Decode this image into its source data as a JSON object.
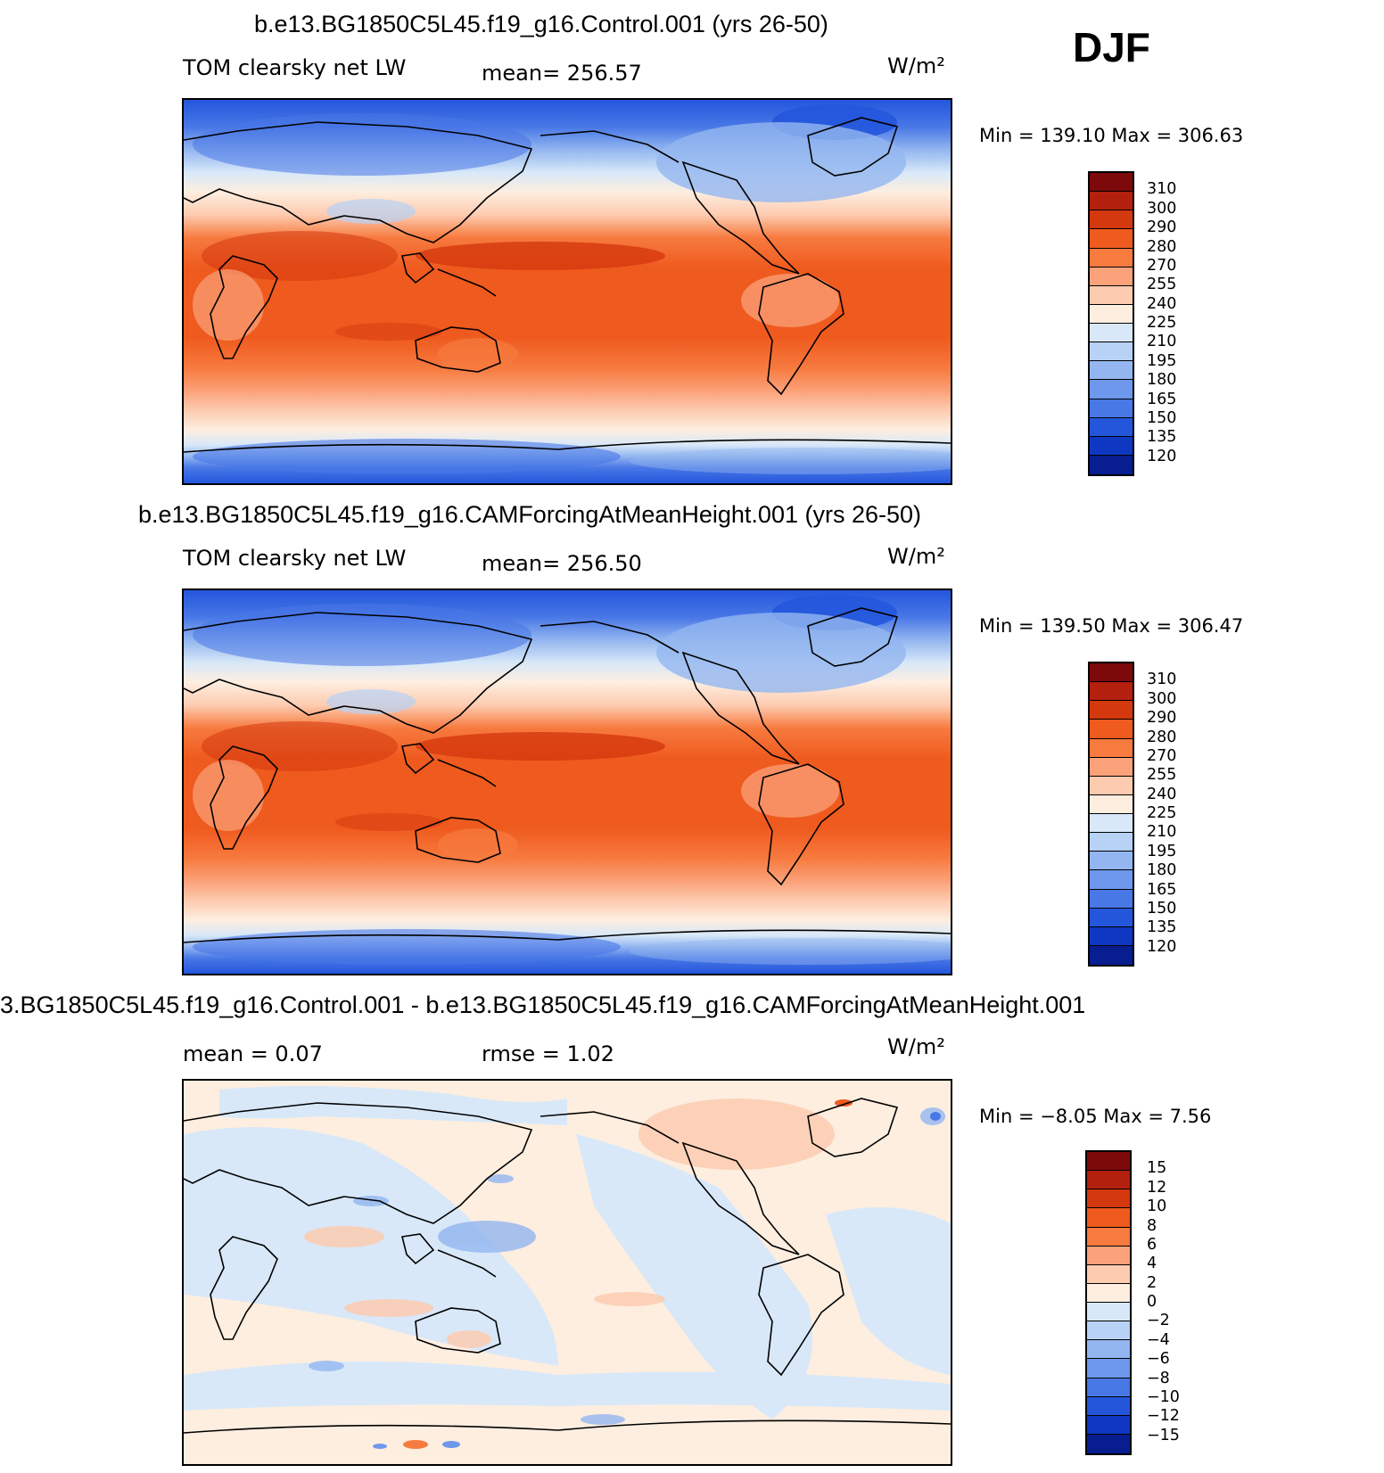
{
  "season": "DJF",
  "panels": [
    {
      "title": "b.e13.BG1850C5L45.f19_g16.Control.001 (yrs 26-50)",
      "left_label": "TOM clearsky net LW",
      "center_label": "mean= 256.57",
      "units": "W/m²",
      "minmax": "Min  =  139.10  Max  =  306.63"
    },
    {
      "title": "b.e13.BG1850C5L45.f19_g16.CAMForcingAtMeanHeight.001 (yrs 26-50)",
      "left_label": "TOM clearsky net LW",
      "center_label": "mean= 256.50",
      "units": "W/m²",
      "minmax": "Min  =  139.50  Max  =  306.47"
    },
    {
      "title": "3.BG1850C5L45.f19_g16.Control.001 - b.e13.BG1850C5L45.f19_g16.CAMForcingAtMeanHeight.001",
      "left_label": "mean  =     0.07",
      "center_label": "rmse  =     1.02",
      "units": "W/m²",
      "minmax": "Min  =    −8.05  Max  =      7.56"
    }
  ],
  "colorbars": {
    "field": {
      "colors": [
        "#7d0a0a",
        "#b3200d",
        "#d4380e",
        "#ef5a1e",
        "#f77a3f",
        "#fba27a",
        "#fdcbb0",
        "#fdeee0",
        "#d8e8f8",
        "#b7d2f5",
        "#93b6f0",
        "#6e98ec",
        "#4877e6",
        "#2456dc",
        "#0e38c2",
        "#081d8f"
      ],
      "ticks": [
        "310",
        "300",
        "290",
        "280",
        "270",
        "255",
        "240",
        "225",
        "210",
        "195",
        "180",
        "165",
        "150",
        "135",
        "120"
      ]
    },
    "diff": {
      "colors": [
        "#7d0a0a",
        "#b3200d",
        "#d4380e",
        "#ef5a1e",
        "#f77a3f",
        "#fba27a",
        "#fdcbb0",
        "#fdeee0",
        "#d8e8f8",
        "#b7d2f5",
        "#93b6f0",
        "#6e98ec",
        "#4877e6",
        "#2456dc",
        "#0e38c2",
        "#081d8f"
      ],
      "ticks": [
        "15",
        "12",
        "10",
        "8",
        "6",
        "4",
        "2",
        "0",
        "−2",
        "−4",
        "−6",
        "−8",
        "−10",
        "−12",
        "−15"
      ]
    }
  }
}
